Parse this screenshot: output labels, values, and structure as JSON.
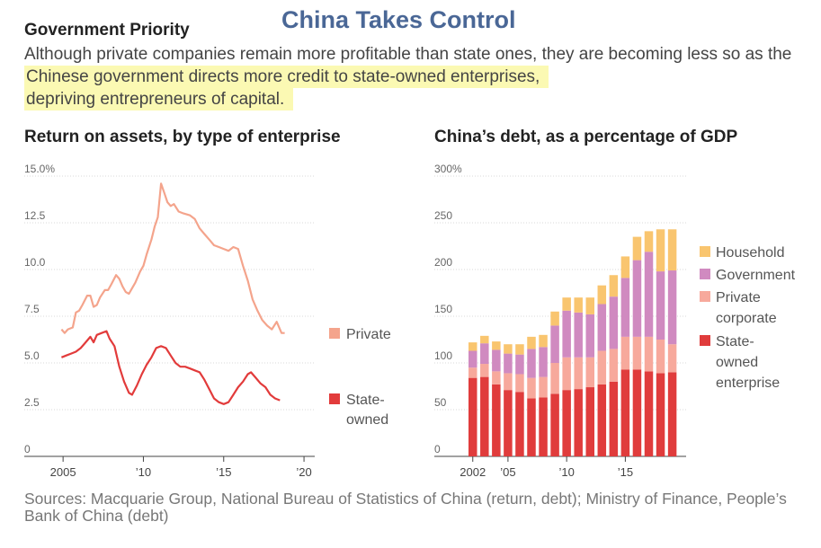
{
  "banner": "China Takes Control",
  "kicker": "Government Priority",
  "dek": {
    "lead": "Although private companies remain more profitable than state ones, they are becoming less so as the",
    "highlight_1": "Chinese government directs more credit to state-owned enterprises,",
    "highlight_2": "depriving entrepreneurs of capital."
  },
  "source": "Sources: Macquarie Group, National Bureau of Statistics of China (return, debt); Ministry of Finance, People’s Bank of China (debt)",
  "colors": {
    "private_line": "#f4a48c",
    "state_line": "#e23b3b",
    "household": "#f9c56f",
    "government": "#d08ac0",
    "private_corporate": "#f7a99c",
    "state_owned": "#e03c3c",
    "grid": "#d8d8d8",
    "banner": "#4a6796",
    "highlight": "#fbf9b3"
  },
  "chart_data": [
    {
      "type": "line",
      "title": "Return on assets, by type of enterprise",
      "ylim": [
        0,
        15
      ],
      "xlim": [
        2004.6,
        2020.5
      ],
      "y_ticks": [
        "15.0%",
        "12.5",
        "10.0",
        "7.5",
        "5.0",
        "2.5",
        "0"
      ],
      "y_tick_values": [
        15,
        12.5,
        10,
        7.5,
        5,
        2.5,
        0
      ],
      "x_tick_labels": [
        "2005",
        "’10",
        "’15",
        "’20"
      ],
      "x_tick_values": [
        2005,
        2010,
        2015,
        2020
      ],
      "series": [
        {
          "name": "Private",
          "legend": [
            "Private"
          ],
          "color_key": "private_line",
          "points": [
            [
              2004.9,
              6.8
            ],
            [
              2005.1,
              6.6
            ],
            [
              2005.3,
              6.8
            ],
            [
              2005.6,
              6.9
            ],
            [
              2005.8,
              7.7
            ],
            [
              2006.0,
              7.8
            ],
            [
              2006.2,
              8.1
            ],
            [
              2006.5,
              8.6
            ],
            [
              2006.7,
              8.6
            ],
            [
              2006.9,
              8.0
            ],
            [
              2007.1,
              8.1
            ],
            [
              2007.3,
              8.5
            ],
            [
              2007.6,
              8.9
            ],
            [
              2007.8,
              8.9
            ],
            [
              2008.0,
              9.2
            ],
            [
              2008.3,
              9.7
            ],
            [
              2008.5,
              9.5
            ],
            [
              2008.7,
              9.1
            ],
            [
              2008.9,
              8.8
            ],
            [
              2009.1,
              8.7
            ],
            [
              2009.3,
              9.0
            ],
            [
              2009.5,
              9.3
            ],
            [
              2009.8,
              9.9
            ],
            [
              2010.0,
              10.2
            ],
            [
              2010.2,
              10.8
            ],
            [
              2010.5,
              11.6
            ],
            [
              2010.7,
              12.3
            ],
            [
              2010.9,
              12.8
            ],
            [
              2011.1,
              14.6
            ],
            [
              2011.3,
              14.1
            ],
            [
              2011.5,
              13.6
            ],
            [
              2011.7,
              13.4
            ],
            [
              2011.9,
              13.5
            ],
            [
              2012.2,
              13.1
            ],
            [
              2012.5,
              13.0
            ],
            [
              2012.9,
              12.9
            ],
            [
              2013.2,
              12.7
            ],
            [
              2013.5,
              12.2
            ],
            [
              2013.8,
              11.9
            ],
            [
              2014.1,
              11.6
            ],
            [
              2014.4,
              11.3
            ],
            [
              2014.7,
              11.2
            ],
            [
              2015.0,
              11.1
            ],
            [
              2015.3,
              11.0
            ],
            [
              2015.6,
              11.2
            ],
            [
              2015.9,
              11.1
            ],
            [
              2016.2,
              10.2
            ],
            [
              2016.5,
              9.4
            ],
            [
              2016.8,
              8.4
            ],
            [
              2017.1,
              7.8
            ],
            [
              2017.4,
              7.3
            ],
            [
              2017.7,
              7.0
            ],
            [
              2018.0,
              6.8
            ],
            [
              2018.3,
              7.2
            ],
            [
              2018.6,
              6.6
            ],
            [
              2018.8,
              6.6
            ]
          ]
        },
        {
          "name": "State-owned",
          "legend": [
            "State-",
            "owned"
          ],
          "color_key": "state_line",
          "points": [
            [
              2004.9,
              5.3
            ],
            [
              2005.2,
              5.4
            ],
            [
              2005.5,
              5.5
            ],
            [
              2005.8,
              5.6
            ],
            [
              2006.1,
              5.8
            ],
            [
              2006.4,
              6.1
            ],
            [
              2006.7,
              6.4
            ],
            [
              2006.9,
              6.1
            ],
            [
              2007.1,
              6.5
            ],
            [
              2007.4,
              6.6
            ],
            [
              2007.7,
              6.7
            ],
            [
              2007.9,
              6.3
            ],
            [
              2008.2,
              5.9
            ],
            [
              2008.5,
              4.8
            ],
            [
              2008.8,
              4.0
            ],
            [
              2009.1,
              3.4
            ],
            [
              2009.3,
              3.3
            ],
            [
              2009.6,
              3.8
            ],
            [
              2009.9,
              4.4
            ],
            [
              2010.2,
              4.9
            ],
            [
              2010.5,
              5.3
            ],
            [
              2010.8,
              5.8
            ],
            [
              2011.1,
              5.9
            ],
            [
              2011.4,
              5.8
            ],
            [
              2011.7,
              5.4
            ],
            [
              2012.0,
              5.0
            ],
            [
              2012.3,
              4.8
            ],
            [
              2012.6,
              4.8
            ],
            [
              2012.9,
              4.7
            ],
            [
              2013.2,
              4.6
            ],
            [
              2013.5,
              4.5
            ],
            [
              2013.8,
              4.1
            ],
            [
              2014.1,
              3.6
            ],
            [
              2014.4,
              3.1
            ],
            [
              2014.7,
              2.9
            ],
            [
              2015.0,
              2.8
            ],
            [
              2015.3,
              2.9
            ],
            [
              2015.6,
              3.3
            ],
            [
              2015.9,
              3.7
            ],
            [
              2016.2,
              4.0
            ],
            [
              2016.5,
              4.4
            ],
            [
              2016.7,
              4.5
            ],
            [
              2017.0,
              4.2
            ],
            [
              2017.3,
              3.9
            ],
            [
              2017.6,
              3.7
            ],
            [
              2017.9,
              3.3
            ],
            [
              2018.2,
              3.1
            ],
            [
              2018.5,
              3.0
            ]
          ]
        }
      ]
    },
    {
      "type": "bar",
      "stacked": true,
      "title": "China’s debt, as a percentage of GDP",
      "ylim": [
        0,
        300
      ],
      "y_ticks": [
        "300%",
        "250",
        "200",
        "150",
        "100",
        "50",
        "0"
      ],
      "y_tick_values": [
        300,
        250,
        200,
        150,
        100,
        50,
        0
      ],
      "categories": [
        "2002",
        "2003",
        "2004",
        "2005",
        "2006",
        "2007",
        "2008",
        "2009",
        "2010",
        "2011",
        "2012",
        "2013",
        "2014",
        "2015",
        "2016",
        "2017",
        "2018",
        "2019"
      ],
      "x_tick_labels": [
        "2002",
        "’05",
        "’10",
        "’15"
      ],
      "x_tick_categories": [
        "2002",
        "2005",
        "2010",
        "2015"
      ],
      "series": [
        {
          "name": "State-owned enterprise",
          "legend": [
            "State-",
            "owned",
            "enterprise"
          ],
          "color_key": "state_owned",
          "values": [
            84,
            85,
            77,
            71,
            69,
            62,
            63,
            67,
            71,
            72,
            74,
            77,
            80,
            93,
            93,
            91,
            89,
            90
          ]
        },
        {
          "name": "Private corporate",
          "legend": [
            "Private",
            "corporate"
          ],
          "color_key": "private_corporate",
          "values": [
            11,
            14,
            14,
            18,
            19,
            22,
            22,
            33,
            35,
            34,
            32,
            36,
            35,
            35,
            35,
            37,
            36,
            30
          ]
        },
        {
          "name": "Government",
          "legend": [
            "Government"
          ],
          "color_key": "government",
          "values": [
            18,
            22,
            23,
            21,
            21,
            31,
            32,
            40,
            50,
            48,
            46,
            50,
            56,
            63,
            82,
            91,
            73,
            79
          ]
        },
        {
          "name": "Household",
          "legend": [
            "Household"
          ],
          "color_key": "household",
          "values": [
            9,
            8,
            9,
            10,
            11,
            13,
            13,
            15,
            14,
            16,
            18,
            20,
            23,
            23,
            25,
            22,
            45,
            44
          ]
        }
      ]
    }
  ]
}
